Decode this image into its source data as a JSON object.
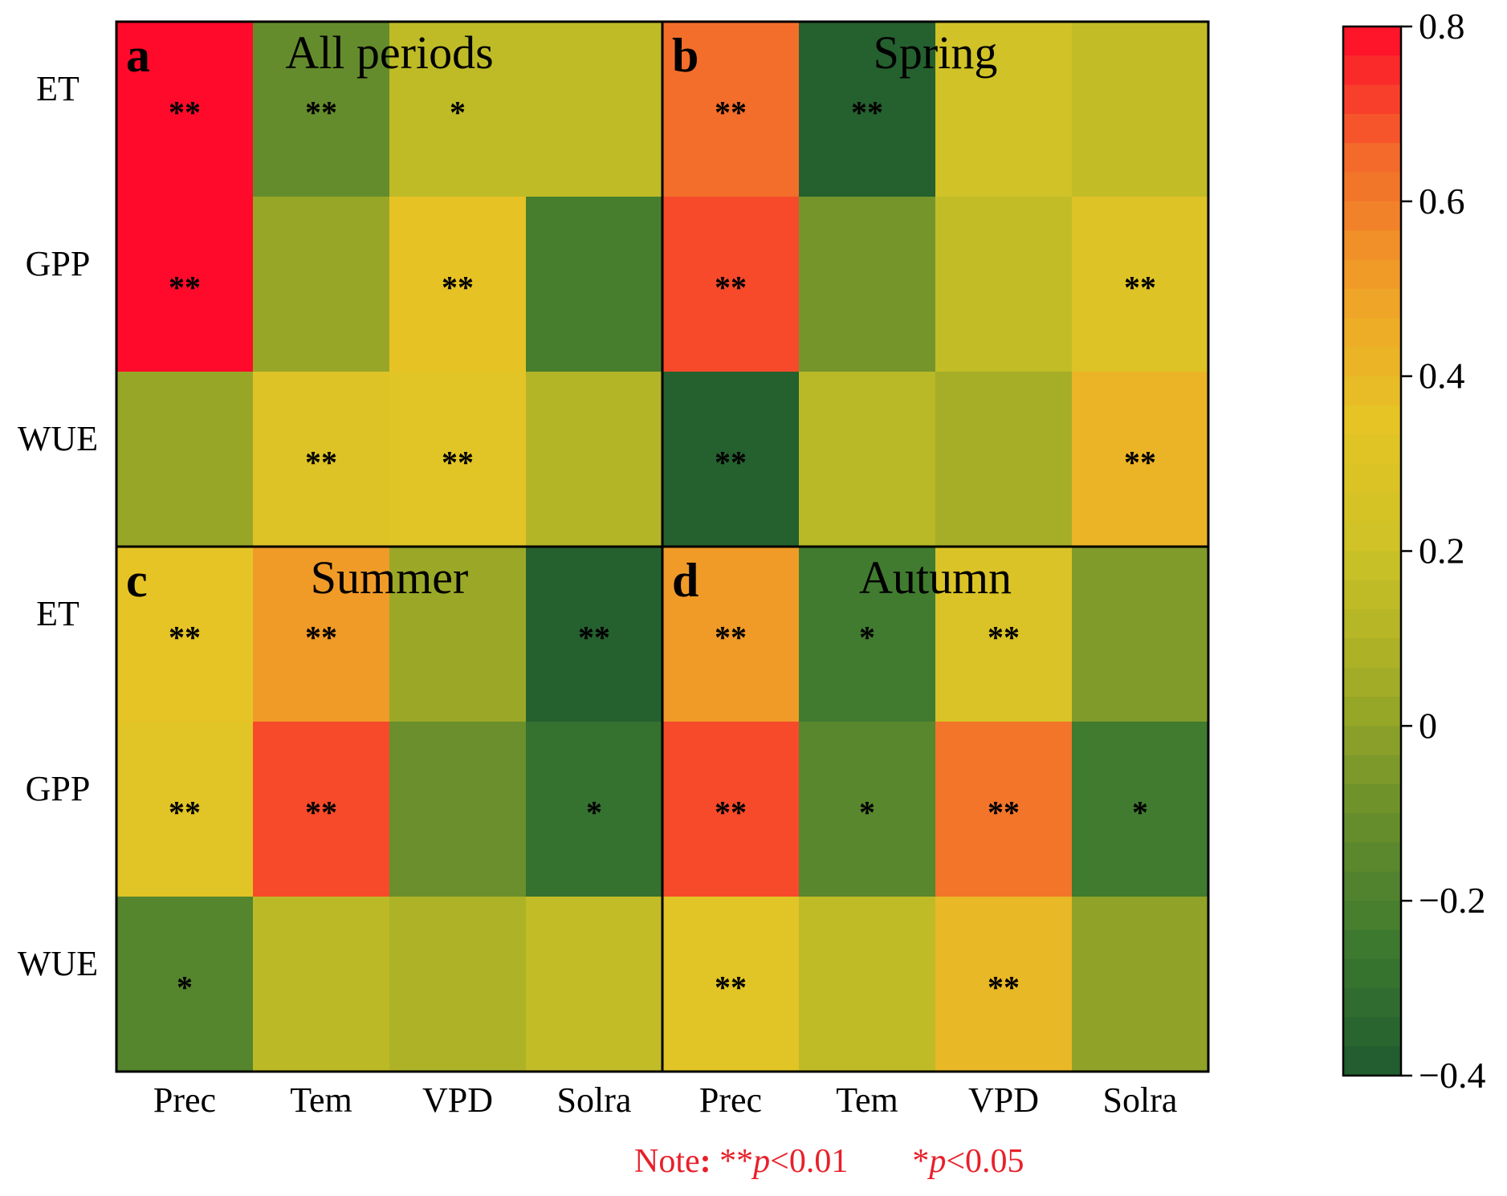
{
  "chart_data": {
    "type": "heatmap",
    "rows": [
      "ET",
      "GPP",
      "WUE"
    ],
    "columns": [
      "Prec",
      "Tem",
      "VPD",
      "Solra"
    ],
    "panels": [
      {
        "letter": "a",
        "title": "All periods",
        "values": [
          [
            0.8,
            -0.12,
            0.15,
            0.15
          ],
          [
            0.8,
            0.02,
            0.36,
            -0.22
          ],
          [
            0.02,
            0.3,
            0.32,
            0.11
          ]
        ],
        "significance": [
          [
            "**",
            "**",
            "*",
            ""
          ],
          [
            "**",
            "",
            "**",
            ""
          ],
          [
            "",
            "**",
            "**",
            ""
          ]
        ]
      },
      {
        "letter": "b",
        "title": "Spring",
        "values": [
          [
            0.64,
            -0.37,
            0.22,
            0.16
          ],
          [
            0.7,
            -0.07,
            0.16,
            0.3
          ],
          [
            -0.37,
            0.13,
            0.06,
            0.42
          ]
        ],
        "significance": [
          [
            "**",
            "**",
            "",
            ""
          ],
          [
            "**",
            "",
            "",
            "**"
          ],
          [
            "**",
            "",
            "",
            "**"
          ]
        ]
      },
      {
        "letter": "c",
        "title": "Summer",
        "values": [
          [
            0.35,
            0.52,
            0.03,
            -0.37
          ],
          [
            0.32,
            0.7,
            -0.1,
            -0.29
          ],
          [
            -0.17,
            0.14,
            0.09,
            0.16
          ]
        ],
        "significance": [
          [
            "**",
            "**",
            "",
            "**"
          ],
          [
            "**",
            "**",
            "",
            "*"
          ],
          [
            "*",
            "",
            "",
            ""
          ]
        ]
      },
      {
        "letter": "d",
        "title": "Autumn",
        "values": [
          [
            0.52,
            -0.24,
            0.28,
            -0.04
          ],
          [
            0.7,
            -0.16,
            0.62,
            -0.24
          ],
          [
            0.32,
            0.15,
            0.4,
            0.0
          ]
        ],
        "significance": [
          [
            "**",
            "*",
            "**",
            ""
          ],
          [
            "**",
            "*",
            "**",
            "*"
          ],
          [
            "**",
            "",
            "**",
            ""
          ]
        ]
      }
    ],
    "colorbar": {
      "range": [
        -0.4,
        0.8
      ],
      "ticks": [
        "0.8",
        "0.6",
        "0.4",
        "0.2",
        "0",
        "−0.2",
        "−0.4"
      ],
      "tick_values": [
        0.8,
        0.6,
        0.4,
        0.2,
        0,
        -0.2,
        -0.4
      ],
      "colors": [
        "#1f5a2f",
        "#3d7a2f",
        "#6a8f2c",
        "#a3ac26",
        "#cdc227",
        "#e6c425",
        "#f0a128",
        "#f36a2b",
        "#ff0a2a"
      ]
    },
    "note": {
      "prefix": "Note",
      "colon": ": ",
      "double_star": "**",
      "p1_symbol": "p",
      "p1_value": "<0.01",
      "single_star": "*",
      "p2_symbol": "p",
      "p2_value": "<0.05"
    },
    "note_color": "#e8202a"
  }
}
